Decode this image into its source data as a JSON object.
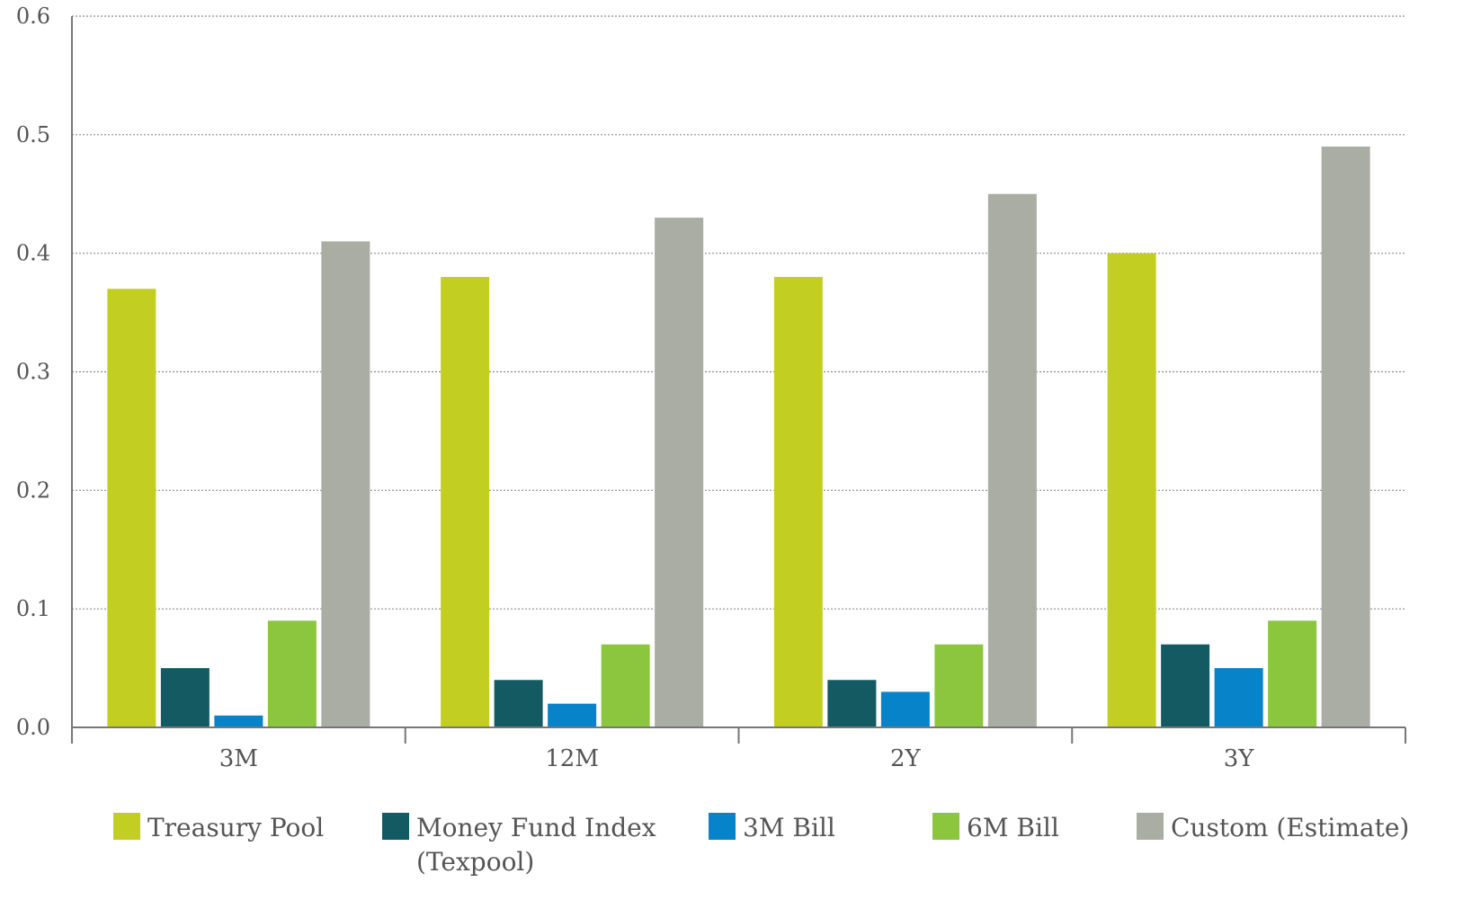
{
  "chart_data": {
    "type": "bar",
    "categories": [
      "3M",
      "12M",
      "2Y",
      "3Y"
    ],
    "series": [
      {
        "name": "Treasury Pool",
        "color": "#c2cf22",
        "values": [
          0.37,
          0.38,
          0.38,
          0.4
        ]
      },
      {
        "name": "Money Fund Index\n(Texpool)",
        "color": "#145a63",
        "values": [
          0.05,
          0.04,
          0.04,
          0.07
        ]
      },
      {
        "name": "3M Bill",
        "color": "#0784c9",
        "values": [
          0.01,
          0.02,
          0.03,
          0.05
        ]
      },
      {
        "name": "6M Bill",
        "color": "#8cc63f",
        "values": [
          0.09,
          0.07,
          0.07,
          0.09
        ]
      },
      {
        "name": "Custom (Estimate)",
        "color": "#aaada3",
        "values": [
          0.41,
          0.43,
          0.45,
          0.49
        ]
      }
    ],
    "yticks": [
      "0.0",
      "0.1",
      "0.2",
      "0.3",
      "0.4",
      "0.5",
      "0.6"
    ],
    "ylim": [
      0,
      0.6
    ],
    "grid": true,
    "legend_position": "bottom"
  }
}
